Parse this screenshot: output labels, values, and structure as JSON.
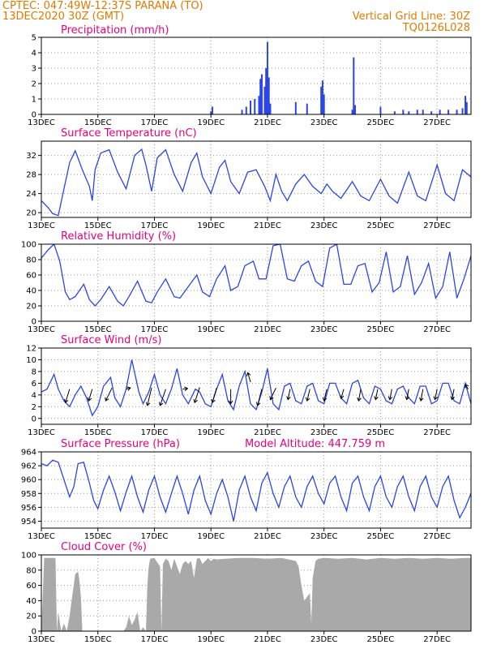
{
  "header": {
    "left_line1": "CPTEC:   047:49W-12:37S   PARANA (TO)",
    "left_line2": "13DEC2020 30Z (GMT)",
    "right_line1": "Vertical Grid Line: 30Z",
    "right_line2": "TQ0126L028"
  },
  "colors": {
    "header": "#e07a00",
    "title": "#e8007a",
    "series": "#2a45e8",
    "cloud": "#a9a9a9",
    "grid": "#9a9a9a"
  },
  "x_axis": {
    "unit": "day index from 13DEC",
    "ticks": [
      {
        "x": 0,
        "label": "13DEC"
      },
      {
        "x": 2,
        "label": "15DEC"
      },
      {
        "x": 4,
        "label": "17DEC"
      },
      {
        "x": 6,
        "label": "19DEC"
      },
      {
        "x": 8,
        "label": "21DEC"
      },
      {
        "x": 10,
        "label": "23DEC"
      },
      {
        "x": 12,
        "label": "25DEC"
      },
      {
        "x": 14,
        "label": "27DEC"
      }
    ],
    "xlim": [
      0,
      15.2
    ]
  },
  "chart_data": [
    {
      "type": "bar",
      "title": "Precipitation (mm/h)",
      "ylim": [
        0,
        5
      ],
      "yticks": [
        0,
        1,
        2,
        3,
        4,
        5
      ],
      "x": [
        6.0,
        6.05,
        7.1,
        7.25,
        7.4,
        7.55,
        7.7,
        7.75,
        7.8,
        7.9,
        7.95,
        8.0,
        8.05,
        8.1,
        9.0,
        9.4,
        9.9,
        9.95,
        10.0,
        11.0,
        11.05,
        11.1,
        12.0,
        12.5,
        12.8,
        13.0,
        13.3,
        13.5,
        13.8,
        14.1,
        14.4,
        14.7,
        14.9,
        15.0,
        15.05
      ],
      "values": [
        0.2,
        0.5,
        0.3,
        0.5,
        0.9,
        1.0,
        1.2,
        2.3,
        2.6,
        1.8,
        3.0,
        4.7,
        2.4,
        0.7,
        0.8,
        0.7,
        1.8,
        2.2,
        1.3,
        0.3,
        3.7,
        0.6,
        0.5,
        0.2,
        0.3,
        0.2,
        0.3,
        0.3,
        0.2,
        0.3,
        0.3,
        0.3,
        0.4,
        1.2,
        0.8
      ]
    },
    {
      "type": "line",
      "title": "Surface Temperature (nC)",
      "ylim": [
        19,
        35
      ],
      "yticks": [
        20,
        24,
        28,
        32
      ],
      "x": [
        0,
        0.25,
        0.4,
        0.6,
        0.8,
        1.0,
        1.2,
        1.45,
        1.7,
        1.8,
        1.9,
        2.1,
        2.4,
        2.7,
        3.0,
        3.3,
        3.55,
        3.7,
        3.9,
        4.1,
        4.4,
        4.7,
        5.0,
        5.3,
        5.5,
        5.7,
        6.0,
        6.3,
        6.5,
        6.7,
        7.0,
        7.3,
        7.6,
        7.9,
        8.1,
        8.3,
        8.5,
        8.7,
        9.0,
        9.3,
        9.6,
        9.9,
        10.1,
        10.3,
        10.6,
        11.0,
        11.3,
        11.6,
        12.0,
        12.3,
        12.6,
        13.0,
        13.3,
        13.6,
        14.0,
        14.3,
        14.6,
        14.9,
        15.2
      ],
      "values": [
        22.5,
        21.0,
        19.8,
        19.4,
        25.0,
        30.5,
        33.0,
        29.0,
        25.5,
        22.5,
        29.0,
        32.5,
        33.2,
        28.5,
        25.0,
        32.0,
        33.3,
        30.0,
        24.5,
        31.5,
        33.2,
        28.0,
        24.5,
        30.5,
        32.5,
        27.5,
        24.0,
        29.5,
        31.0,
        26.5,
        24.0,
        28.5,
        29.0,
        25.5,
        22.5,
        28.0,
        24.5,
        22.5,
        26.0,
        28.0,
        25.5,
        24.0,
        26.0,
        24.5,
        23.0,
        26.5,
        23.5,
        22.5,
        27.0,
        23.5,
        22.0,
        28.5,
        23.5,
        22.5,
        30.0,
        24.0,
        22.5,
        29.0,
        27.5
      ]
    },
    {
      "type": "line",
      "title": "Relative Humidity (%)",
      "ylim": [
        0,
        100
      ],
      "yticks": [
        0,
        20,
        40,
        60,
        80,
        100
      ],
      "x": [
        0,
        0.25,
        0.45,
        0.65,
        0.85,
        1.0,
        1.2,
        1.5,
        1.7,
        1.9,
        2.1,
        2.4,
        2.7,
        2.9,
        3.1,
        3.4,
        3.7,
        3.9,
        4.1,
        4.4,
        4.7,
        4.9,
        5.2,
        5.5,
        5.7,
        5.95,
        6.2,
        6.5,
        6.7,
        6.95,
        7.2,
        7.5,
        7.7,
        7.95,
        8.2,
        8.45,
        8.7,
        8.95,
        9.2,
        9.45,
        9.7,
        9.95,
        10.2,
        10.45,
        10.7,
        10.95,
        11.2,
        11.45,
        11.7,
        11.95,
        12.2,
        12.45,
        12.7,
        12.95,
        13.2,
        13.45,
        13.7,
        13.95,
        14.2,
        14.45,
        14.7,
        14.95,
        15.2
      ],
      "values": [
        82,
        93,
        100,
        78,
        38,
        28,
        32,
        48,
        28,
        20,
        28,
        45,
        26,
        20,
        32,
        52,
        26,
        24,
        38,
        55,
        32,
        30,
        45,
        60,
        38,
        32,
        55,
        72,
        40,
        45,
        72,
        78,
        55,
        55,
        98,
        100,
        55,
        52,
        72,
        78,
        52,
        45,
        95,
        100,
        48,
        48,
        72,
        75,
        38,
        50,
        90,
        38,
        45,
        85,
        35,
        50,
        75,
        30,
        45,
        90,
        30,
        55,
        85
      ]
    },
    {
      "type": "line",
      "title": "Surface Wind (m/s)",
      "ylim": [
        -1,
        12
      ],
      "yticks": [
        0,
        2,
        4,
        6,
        8,
        10,
        12
      ],
      "x": [
        0,
        0.2,
        0.45,
        0.6,
        0.8,
        1.0,
        1.2,
        1.4,
        1.6,
        1.8,
        2.0,
        2.2,
        2.45,
        2.6,
        2.8,
        3.0,
        3.2,
        3.45,
        3.6,
        3.8,
        4.0,
        4.2,
        4.4,
        4.6,
        4.8,
        5.0,
        5.2,
        5.45,
        5.6,
        5.8,
        6.0,
        6.2,
        6.4,
        6.6,
        6.8,
        7.0,
        7.2,
        7.4,
        7.6,
        7.8,
        8.0,
        8.2,
        8.4,
        8.6,
        8.8,
        9.0,
        9.2,
        9.4,
        9.6,
        9.8,
        10.0,
        10.2,
        10.4,
        10.6,
        10.8,
        11.0,
        11.2,
        11.4,
        11.6,
        11.8,
        12.0,
        12.2,
        12.4,
        12.6,
        12.8,
        13.0,
        13.2,
        13.4,
        13.6,
        13.8,
        14.0,
        14.2,
        14.4,
        14.6,
        14.8,
        15.0,
        15.2
      ],
      "values": [
        4.5,
        5.0,
        7.5,
        5.0,
        3.0,
        2.0,
        4.0,
        5.5,
        3.5,
        0.5,
        2.0,
        5.5,
        7.0,
        3.5,
        2.0,
        5.0,
        10.0,
        4.5,
        2.5,
        4.5,
        7.5,
        4.0,
        2.5,
        5.0,
        8.5,
        4.0,
        2.5,
        5.0,
        4.5,
        2.5,
        2.0,
        5.0,
        7.5,
        3.0,
        1.5,
        5.5,
        8.0,
        2.5,
        1.5,
        4.5,
        8.5,
        2.5,
        1.5,
        5.5,
        6.0,
        3.0,
        2.5,
        5.5,
        6.0,
        3.0,
        2.5,
        6.0,
        6.0,
        3.5,
        2.5,
        6.0,
        6.5,
        3.5,
        2.5,
        5.5,
        5.0,
        3.0,
        2.5,
        5.0,
        5.5,
        3.5,
        2.5,
        5.5,
        5.5,
        2.5,
        3.0,
        6.0,
        6.0,
        3.0,
        2.5,
        6.0,
        2.5
      ],
      "vectors": [
        {
          "x": 1.0,
          "y": 5.0,
          "dx": -0.6,
          "dy": -2.3
        },
        {
          "x": 1.8,
          "y": 5.0,
          "dx": -0.5,
          "dy": -2.0
        },
        {
          "x": 2.5,
          "y": 5.2,
          "dx": -0.9,
          "dy": -2.2
        },
        {
          "x": 3.0,
          "y": 5.0,
          "dx": 0.6,
          "dy": 0.2
        },
        {
          "x": 3.9,
          "y": 5.2,
          "dx": -0.6,
          "dy": -3.0
        },
        {
          "x": 4.4,
          "y": 5.0,
          "dx": -0.8,
          "dy": -2.8
        },
        {
          "x": 5.0,
          "y": 5.0,
          "dx": 0.7,
          "dy": 0.1
        },
        {
          "x": 5.6,
          "y": 5.3,
          "dx": -0.7,
          "dy": -2.6
        },
        {
          "x": 6.2,
          "y": 5.2,
          "dx": -0.6,
          "dy": -2.5
        },
        {
          "x": 6.7,
          "y": 5.0,
          "dx": 0.0,
          "dy": -2.5
        },
        {
          "x": 7.4,
          "y": 6.2,
          "dx": -0.4,
          "dy": 1.6
        },
        {
          "x": 7.8,
          "y": 5.0,
          "dx": -0.6,
          "dy": -2.8
        },
        {
          "x": 8.3,
          "y": 5.2,
          "dx": -0.8,
          "dy": -2.0
        },
        {
          "x": 8.8,
          "y": 5.0,
          "dx": -0.3,
          "dy": -1.8
        },
        {
          "x": 9.5,
          "y": 5.0,
          "dx": -0.4,
          "dy": -2.0
        },
        {
          "x": 10.1,
          "y": 5.0,
          "dx": -0.4,
          "dy": -2.0
        },
        {
          "x": 10.7,
          "y": 5.0,
          "dx": -0.4,
          "dy": -1.6
        },
        {
          "x": 11.3,
          "y": 5.0,
          "dx": -0.3,
          "dy": -2.0
        },
        {
          "x": 11.9,
          "y": 5.0,
          "dx": -0.3,
          "dy": -1.8
        },
        {
          "x": 12.4,
          "y": 5.0,
          "dx": -0.3,
          "dy": -1.8
        },
        {
          "x": 13.0,
          "y": 5.0,
          "dx": -0.3,
          "dy": -1.8
        },
        {
          "x": 13.5,
          "y": 5.0,
          "dx": -0.3,
          "dy": -2.0
        },
        {
          "x": 14.0,
          "y": 5.0,
          "dx": -0.3,
          "dy": -1.8
        },
        {
          "x": 14.6,
          "y": 5.0,
          "dx": -0.3,
          "dy": -1.8
        },
        {
          "x": 15.1,
          "y": 5.0,
          "dx": -0.4,
          "dy": 0.8
        }
      ]
    },
    {
      "type": "line",
      "title": "Surface Pressure (hPa)",
      "extra_label": "Model Altitude: 447.759  m",
      "ylim": [
        953,
        964
      ],
      "yticks": [
        954,
        956,
        958,
        960,
        962,
        964
      ],
      "x": [
        0,
        0.2,
        0.4,
        0.6,
        0.8,
        1.0,
        1.15,
        1.3,
        1.5,
        1.7,
        1.85,
        2.0,
        2.2,
        2.4,
        2.6,
        2.8,
        3.0,
        3.2,
        3.4,
        3.6,
        3.8,
        4.0,
        4.2,
        4.4,
        4.6,
        4.8,
        5.0,
        5.2,
        5.4,
        5.6,
        5.8,
        6.0,
        6.2,
        6.4,
        6.6,
        6.8,
        7.0,
        7.2,
        7.4,
        7.6,
        7.8,
        8.0,
        8.2,
        8.4,
        8.6,
        8.8,
        9.0,
        9.2,
        9.4,
        9.6,
        9.8,
        10.0,
        10.2,
        10.4,
        10.6,
        10.8,
        11.0,
        11.2,
        11.4,
        11.6,
        11.8,
        12.0,
        12.2,
        12.4,
        12.6,
        12.8,
        13.0,
        13.2,
        13.4,
        13.6,
        13.8,
        14.0,
        14.2,
        14.4,
        14.6,
        14.8,
        15.0,
        15.2
      ],
      "values": [
        962.3,
        962.0,
        962.8,
        962.5,
        960.0,
        957.5,
        959.0,
        962.3,
        962.5,
        959.5,
        957.0,
        955.8,
        958.5,
        960.5,
        958.2,
        955.5,
        958.2,
        960.5,
        957.5,
        955.3,
        958.5,
        960.5,
        957.5,
        955.3,
        958.0,
        960.5,
        958.0,
        955.0,
        958.5,
        960.5,
        957.0,
        955.0,
        958.0,
        960.0,
        957.5,
        954.0,
        958.5,
        960.5,
        957.5,
        955.5,
        959.5,
        961.0,
        958.0,
        956.0,
        959.0,
        960.5,
        957.5,
        956.0,
        959.0,
        960.5,
        958.0,
        956.5,
        959.5,
        960.5,
        957.5,
        955.5,
        959.5,
        960.5,
        957.5,
        955.5,
        959.0,
        960.5,
        957.5,
        956.0,
        959.0,
        960.5,
        957.5,
        955.5,
        959.0,
        960.5,
        957.5,
        956.0,
        959.0,
        960.5,
        957.0,
        954.5,
        956.0,
        958.0
      ]
    },
    {
      "type": "area",
      "title": "Cloud Cover (%)",
      "ylim": [
        0,
        100
      ],
      "yticks": [
        0,
        20,
        40,
        60,
        80,
        100
      ],
      "x": [
        0,
        0.1,
        0.3,
        0.5,
        0.55,
        0.6,
        0.7,
        0.8,
        0.9,
        1.0,
        1.1,
        1.2,
        1.3,
        1.35,
        1.4,
        1.45,
        1.5,
        1.55,
        1.65,
        1.7,
        1.9,
        2.0,
        2.2,
        2.4,
        2.6,
        2.8,
        2.9,
        3.0,
        3.1,
        3.2,
        3.3,
        3.4,
        3.5,
        3.6,
        3.7,
        3.75,
        3.8,
        3.85,
        4.0,
        4.1,
        4.2,
        4.25,
        4.3,
        4.4,
        4.5,
        4.6,
        4.7,
        4.75,
        4.8,
        4.9,
        5.0,
        5.1,
        5.2,
        5.3,
        5.4,
        5.5,
        5.6,
        5.7,
        5.8,
        5.9,
        6.0,
        6.1,
        6.2,
        6.5,
        7.0,
        7.5,
        8.0,
        8.5,
        9.0,
        9.1,
        9.2,
        9.3,
        9.5,
        9.55,
        9.6,
        9.7,
        9.8,
        10.0,
        10.5,
        11.0,
        11.5,
        12.0,
        12.5,
        13.0,
        13.5,
        14.0,
        14.5,
        15.0,
        15.2
      ],
      "values": [
        0,
        96,
        96,
        96,
        0,
        25,
        0,
        10,
        0,
        20,
        48,
        75,
        78,
        65,
        45,
        0,
        0,
        0,
        0,
        0,
        0,
        0,
        0,
        0,
        0,
        0,
        0,
        5,
        20,
        8,
        15,
        25,
        0,
        5,
        0,
        60,
        85,
        95,
        96,
        90,
        85,
        0,
        88,
        95,
        92,
        80,
        95,
        90,
        85,
        75,
        88,
        92,
        88,
        92,
        70,
        95,
        96,
        88,
        92,
        96,
        92,
        95,
        94,
        95,
        96,
        96,
        95,
        96,
        92,
        85,
        60,
        40,
        50,
        10,
        70,
        92,
        95,
        96,
        95,
        96,
        94,
        96,
        95,
        96,
        95,
        96,
        95,
        96,
        96
      ]
    }
  ]
}
